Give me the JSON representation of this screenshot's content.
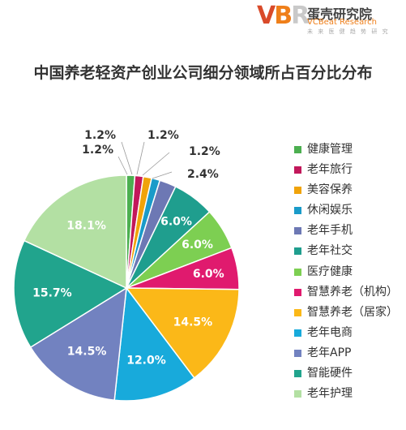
{
  "brand": {
    "logo_mark": [
      "V",
      "B",
      "R"
    ],
    "name_cn": "蛋壳研究院",
    "name_en": "VCBeat Research",
    "tagline": "未 来 医 健 趋 势 研 究"
  },
  "chart_data": {
    "type": "pie",
    "title": "中国养老轻资产创业公司细分领域所占百分比分布",
    "legend_position": "right",
    "labels": [
      "健康管理",
      "老年旅行",
      "美容保养",
      "休闲娱乐",
      "老年手机",
      "老年社交",
      "医疗健康",
      "智慧养老（机构）",
      "智慧养老（居家）",
      "老年电商",
      "老年APP",
      "智能硬件",
      "老年护理"
    ],
    "values": [
      1.2,
      1.2,
      1.2,
      1.2,
      2.4,
      6.0,
      6.0,
      6.0,
      14.5,
      12.0,
      14.5,
      15.7,
      18.1
    ],
    "data_labels": [
      "1.2%",
      "1.2%",
      "1.2%",
      "1.2%",
      "2.4%",
      "6.0%",
      "6.0%",
      "6.0%",
      "14.5%",
      "12.0%",
      "14.5%",
      "15.7%",
      "18.1%"
    ],
    "colors": [
      "#4caf50",
      "#c2185b",
      "#f0a30a",
      "#1a9bc9",
      "#6d78b4",
      "#1f9e8e",
      "#7dcf52",
      "#e01a6e",
      "#fbb818",
      "#18aadb",
      "#7282c0",
      "#21a48d",
      "#b3e0a3"
    ]
  }
}
